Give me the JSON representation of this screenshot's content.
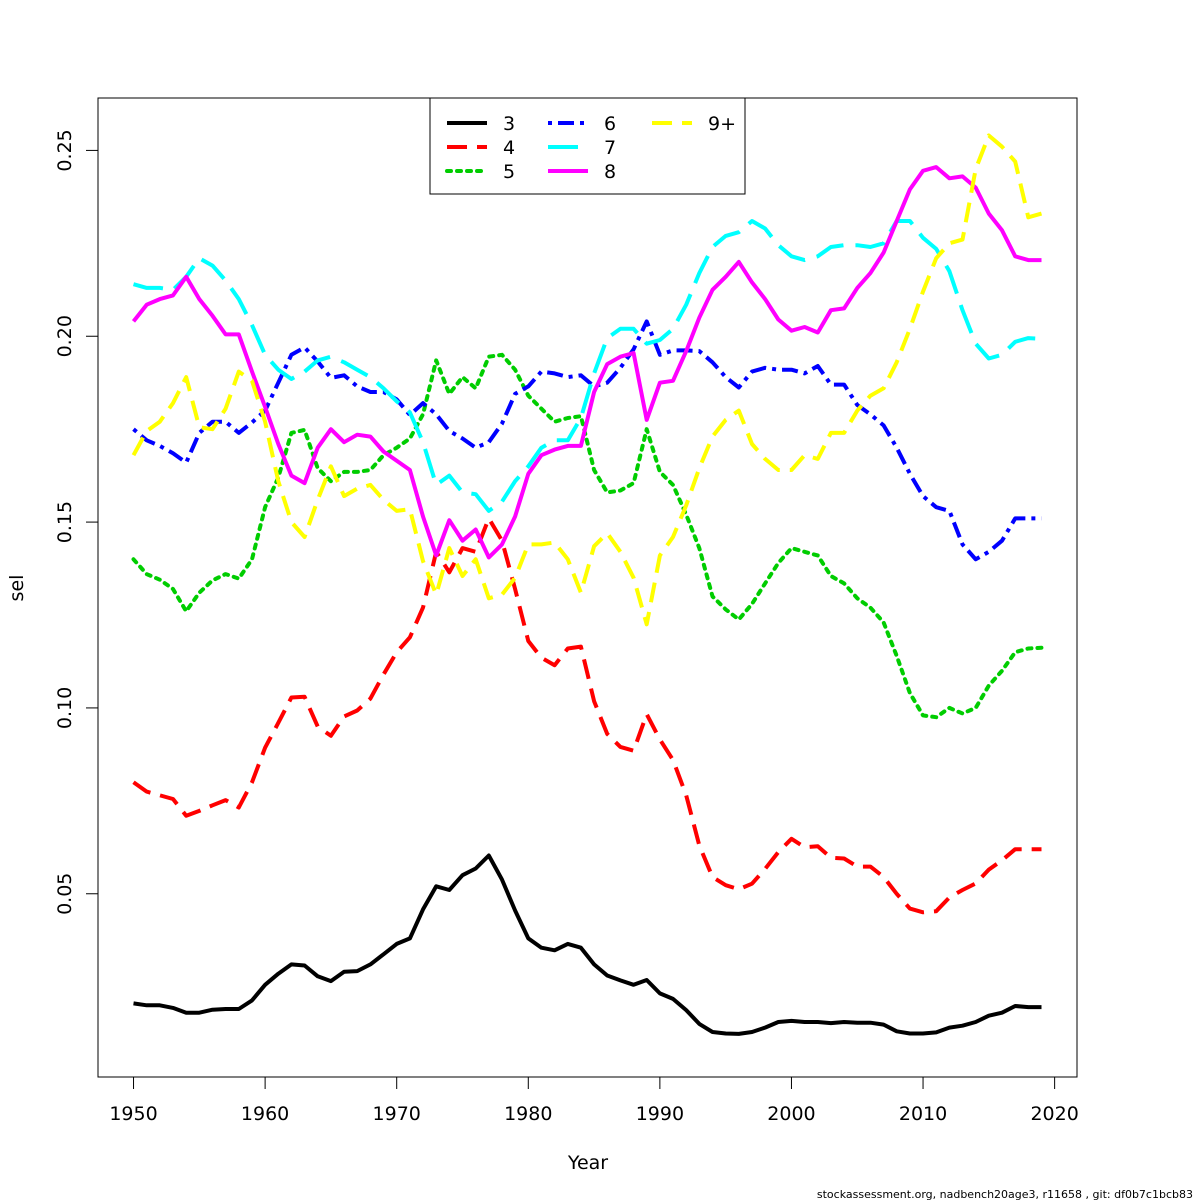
{
  "chart_data": {
    "type": "line",
    "xlabel": "Year",
    "ylabel": "sel",
    "xlim": [
      1947.3,
      2021.7
    ],
    "ylim": [
      0.0007,
      0.2641
    ],
    "x_ticks": [
      1950,
      1960,
      1970,
      1980,
      1990,
      2000,
      2010,
      2020
    ],
    "y_ticks": [
      0.05,
      0.1,
      0.15,
      0.2,
      0.25
    ],
    "y_tick_labels": [
      "0.05",
      "0.10",
      "0.15",
      "0.20",
      "0.25"
    ],
    "grid": false,
    "legend_position": "top-center",
    "footer": "stockassessment.org, nadbench20age3, r11658 , git: df0b7c1bcb83",
    "x": [
      1950,
      1951,
      1952,
      1953,
      1954,
      1955,
      1956,
      1957,
      1958,
      1959,
      1960,
      1961,
      1962,
      1963,
      1964,
      1965,
      1966,
      1967,
      1968,
      1969,
      1970,
      1971,
      1972,
      1973,
      1974,
      1975,
      1976,
      1977,
      1978,
      1979,
      1980,
      1981,
      1982,
      1983,
      1984,
      1985,
      1986,
      1987,
      1988,
      1989,
      1990,
      1991,
      1992,
      1993,
      1994,
      1995,
      1996,
      1997,
      1998,
      1999,
      2000,
      2001,
      2002,
      2003,
      2004,
      2005,
      2006,
      2007,
      2008,
      2009,
      2010,
      2011,
      2012,
      2013,
      2014,
      2015,
      2016,
      2017,
      2018,
      2019
    ],
    "series": [
      {
        "name": "3",
        "color": "#000000",
        "dash": "solid",
        "values": [
          0.0205,
          0.02,
          0.02,
          0.0193,
          0.018,
          0.018,
          0.0188,
          0.019,
          0.019,
          0.0213,
          0.0255,
          0.0285,
          0.031,
          0.0307,
          0.0278,
          0.0265,
          0.029,
          0.0292,
          0.031,
          0.0337,
          0.0365,
          0.038,
          0.0458,
          0.052,
          0.051,
          0.055,
          0.0568,
          0.0603,
          0.0538,
          0.0455,
          0.038,
          0.0355,
          0.0348,
          0.0365,
          0.0355,
          0.031,
          0.028,
          0.0267,
          0.0255,
          0.0268,
          0.0232,
          0.0217,
          0.0187,
          0.015,
          0.0128,
          0.0124,
          0.0123,
          0.0128,
          0.014,
          0.0155,
          0.0158,
          0.0155,
          0.0155,
          0.0152,
          0.0155,
          0.0153,
          0.0153,
          0.0148,
          0.013,
          0.0124,
          0.0124,
          0.0127,
          0.014,
          0.0145,
          0.0155,
          0.0172,
          0.018,
          0.0198,
          0.0195,
          0.0195
        ]
      },
      {
        "name": "4",
        "color": "#ff0000",
        "dash": "dashed",
        "values": [
          0.08,
          0.0775,
          0.0765,
          0.0755,
          0.071,
          0.0723,
          0.0738,
          0.0752,
          0.0732,
          0.08,
          0.0893,
          0.096,
          0.1028,
          0.103,
          0.095,
          0.0925,
          0.0977,
          0.0993,
          0.1025,
          0.109,
          0.115,
          0.119,
          0.127,
          0.142,
          0.1365,
          0.143,
          0.142,
          0.151,
          0.145,
          0.132,
          0.118,
          0.1135,
          0.1115,
          0.116,
          0.1165,
          0.1018,
          0.093,
          0.0895,
          0.0885,
          0.0983,
          0.0915,
          0.086,
          0.0765,
          0.063,
          0.0545,
          0.0523,
          0.0512,
          0.0527,
          0.0567,
          0.0612,
          0.0648,
          0.0625,
          0.0628,
          0.0597,
          0.0595,
          0.0573,
          0.0573,
          0.0545,
          0.05,
          0.046,
          0.045,
          0.0453,
          0.049,
          0.051,
          0.0528,
          0.0565,
          0.059,
          0.062,
          0.062,
          0.062
        ]
      },
      {
        "name": "5",
        "color": "#00cd00",
        "dash": "dotted",
        "values": [
          0.14,
          0.136,
          0.1345,
          0.132,
          0.126,
          0.131,
          0.1343,
          0.136,
          0.1348,
          0.14,
          0.154,
          0.162,
          0.174,
          0.1748,
          0.1645,
          0.161,
          0.1635,
          0.1635,
          0.164,
          0.168,
          0.17,
          0.1725,
          0.179,
          0.1935,
          0.1845,
          0.189,
          0.186,
          0.1945,
          0.195,
          0.191,
          0.184,
          0.1805,
          0.177,
          0.178,
          0.1785,
          0.164,
          0.158,
          0.1585,
          0.1605,
          0.175,
          0.1635,
          0.16,
          0.152,
          0.143,
          0.13,
          0.1265,
          0.1238,
          0.128,
          0.1335,
          0.139,
          0.143,
          0.142,
          0.141,
          0.1355,
          0.1335,
          0.1295,
          0.127,
          0.123,
          0.114,
          0.104,
          0.098,
          0.0975,
          0.1,
          0.0985,
          0.1,
          0.106,
          0.11,
          0.115,
          0.116,
          0.1162
        ]
      },
      {
        "name": "6",
        "color": "#0000ff",
        "dash": "dashdot",
        "values": [
          0.175,
          0.172,
          0.1705,
          0.1685,
          0.166,
          0.174,
          0.177,
          0.177,
          0.174,
          0.1768,
          0.18,
          0.1875,
          0.195,
          0.197,
          0.1932,
          0.1888,
          0.1895,
          0.1865,
          0.185,
          0.185,
          0.183,
          0.1788,
          0.182,
          0.179,
          0.1745,
          0.1725,
          0.17,
          0.1715,
          0.1765,
          0.1845,
          0.1865,
          0.1905,
          0.19,
          0.189,
          0.1895,
          0.1865,
          0.1875,
          0.1915,
          0.1965,
          0.204,
          0.195,
          0.1962,
          0.1962,
          0.196,
          0.193,
          0.189,
          0.1862,
          0.1905,
          0.1915,
          0.191,
          0.191,
          0.19,
          0.192,
          0.187,
          0.187,
          0.1815,
          0.179,
          0.176,
          0.17,
          0.163,
          0.157,
          0.154,
          0.153,
          0.144,
          0.14,
          0.142,
          0.145,
          0.151,
          0.151,
          0.151
        ]
      },
      {
        "name": "7",
        "color": "#00ffff",
        "dash": "longdash",
        "values": [
          0.214,
          0.213,
          0.213,
          0.2125,
          0.216,
          0.221,
          0.219,
          0.215,
          0.21,
          0.203,
          0.195,
          0.191,
          0.1885,
          0.1905,
          0.1935,
          0.1945,
          0.193,
          0.191,
          0.189,
          0.186,
          0.1825,
          0.1795,
          0.1715,
          0.16,
          0.1625,
          0.158,
          0.1575,
          0.153,
          0.1555,
          0.161,
          0.165,
          0.17,
          0.172,
          0.172,
          0.178,
          0.19,
          0.1995,
          0.202,
          0.202,
          0.198,
          0.199,
          0.202,
          0.2085,
          0.217,
          0.224,
          0.227,
          0.228,
          0.231,
          0.229,
          0.2245,
          0.2215,
          0.2205,
          0.2215,
          0.224,
          0.2245,
          0.2245,
          0.224,
          0.225,
          0.231,
          0.231,
          0.2265,
          0.2235,
          0.2175,
          0.207,
          0.198,
          0.194,
          0.195,
          0.1985,
          0.1995,
          0.1993
        ]
      },
      {
        "name": "8",
        "color": "#ff00ff",
        "dash": "solid",
        "values": [
          0.204,
          0.2085,
          0.21,
          0.211,
          0.216,
          0.21,
          0.2055,
          0.2005,
          0.2005,
          0.1905,
          0.181,
          0.171,
          0.1625,
          0.1605,
          0.17,
          0.175,
          0.1715,
          0.1735,
          0.173,
          0.169,
          0.1665,
          0.164,
          0.1515,
          0.141,
          0.1505,
          0.145,
          0.148,
          0.1405,
          0.144,
          0.1515,
          0.163,
          0.168,
          0.1695,
          0.1705,
          0.1705,
          0.185,
          0.1925,
          0.1945,
          0.1955,
          0.1775,
          0.1875,
          0.188,
          0.196,
          0.205,
          0.2125,
          0.216,
          0.22,
          0.2145,
          0.21,
          0.2045,
          0.2015,
          0.2025,
          0.201,
          0.207,
          0.2075,
          0.213,
          0.217,
          0.2225,
          0.231,
          0.2395,
          0.2445,
          0.2455,
          0.2425,
          0.243,
          0.24,
          0.233,
          0.2285,
          0.2215,
          0.2205,
          0.2205
        ]
      },
      {
        "name": "9+",
        "color": "#ffff00",
        "dash": "dashed",
        "values": [
          0.168,
          0.1745,
          0.177,
          0.182,
          0.189,
          0.1755,
          0.175,
          0.1805,
          0.1905,
          0.188,
          0.177,
          0.161,
          0.15,
          0.146,
          0.156,
          0.165,
          0.157,
          0.159,
          0.16,
          0.156,
          0.153,
          0.1535,
          0.1395,
          0.1305,
          0.143,
          0.1355,
          0.14,
          0.1295,
          0.1305,
          0.135,
          0.144,
          0.144,
          0.1445,
          0.14,
          0.131,
          0.1435,
          0.147,
          0.142,
          0.135,
          0.1225,
          0.141,
          0.146,
          0.1545,
          0.1645,
          0.173,
          0.1775,
          0.18,
          0.171,
          0.167,
          0.164,
          0.164,
          0.168,
          0.167,
          0.174,
          0.174,
          0.18,
          0.184,
          0.186,
          0.193,
          0.202,
          0.212,
          0.221,
          0.225,
          0.226,
          0.245,
          0.254,
          0.251,
          0.247,
          0.232,
          0.233
        ]
      }
    ]
  }
}
